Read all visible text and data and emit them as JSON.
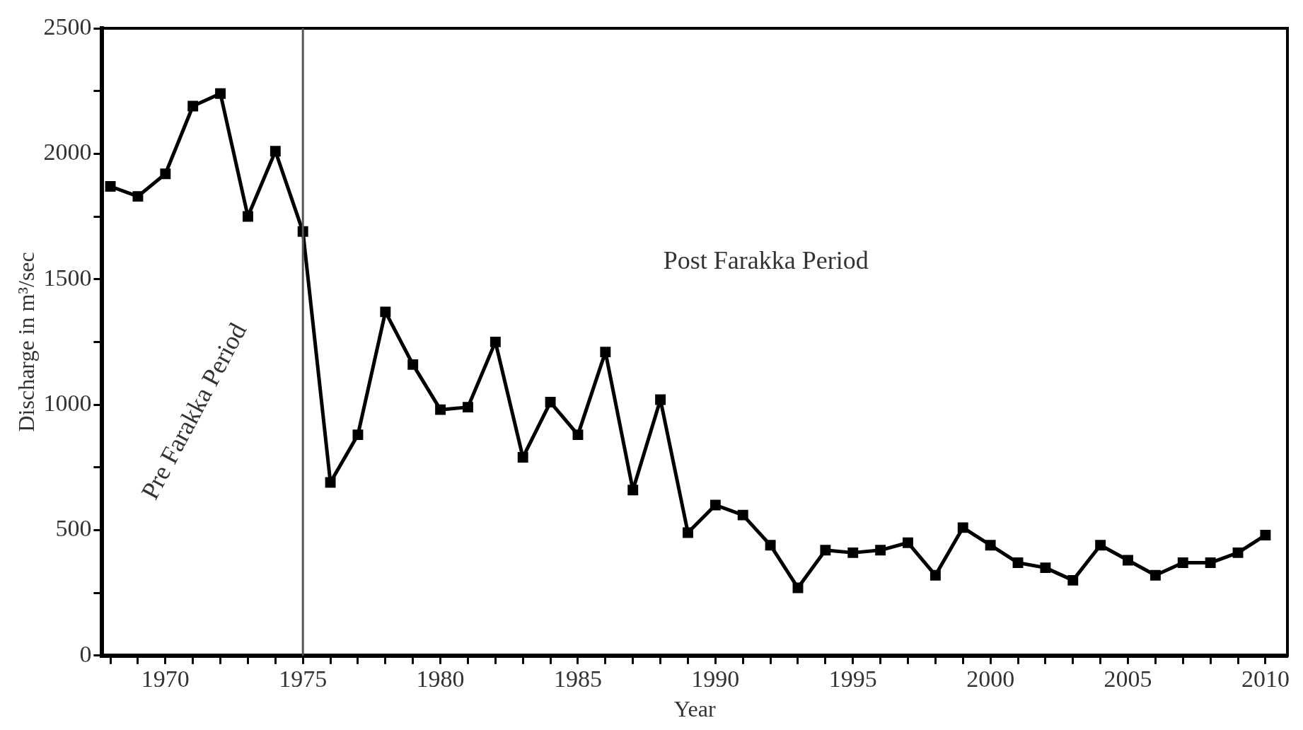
{
  "chart_data": {
    "type": "line",
    "xlabel": "Year",
    "ylabel": "Discharge in m³/sec",
    "x": [
      1968,
      1969,
      1970,
      1971,
      1972,
      1973,
      1974,
      1975,
      1976,
      1977,
      1978,
      1979,
      1980,
      1981,
      1982,
      1983,
      1984,
      1985,
      1986,
      1987,
      1988,
      1989,
      1990,
      1991,
      1992,
      1993,
      1994,
      1995,
      1996,
      1997,
      1998,
      1999,
      2000,
      2001,
      2002,
      2003,
      2004,
      2005,
      2006,
      2007,
      2008,
      2009,
      2010
    ],
    "series": [
      {
        "color": "#000000",
        "values": [
          1870,
          1830,
          1920,
          2190,
          2240,
          1750,
          2010,
          1690,
          690,
          880,
          1370,
          1160,
          980,
          990,
          1250,
          790,
          1010,
          880,
          1210,
          660,
          1020,
          490,
          600,
          560,
          440,
          270,
          420,
          410,
          420,
          450,
          320,
          510,
          440,
          370,
          350,
          300,
          440,
          380,
          320,
          370,
          370,
          410,
          480
        ]
      }
    ],
    "xlim": [
      1967.7,
      2010.8
    ],
    "xticks": [
      {
        "value": 1968,
        "label": null
      },
      {
        "value": 1969,
        "label": null
      },
      1970,
      {
        "value": 1971,
        "label": null
      },
      {
        "value": 1972,
        "label": null
      },
      {
        "value": 1973,
        "label": null
      },
      {
        "value": 1974,
        "label": null
      },
      1975,
      {
        "value": 1976,
        "label": null
      },
      {
        "value": 1977,
        "label": null
      },
      {
        "value": 1978,
        "label": null
      },
      {
        "value": 1979,
        "label": null
      },
      1980,
      {
        "value": 1981,
        "label": null
      },
      {
        "value": 1982,
        "label": null
      },
      {
        "value": 1983,
        "label": null
      },
      {
        "value": 1984,
        "label": null
      },
      1985,
      {
        "value": 1986,
        "label": null
      },
      {
        "value": 1987,
        "label": null
      },
      {
        "value": 1988,
        "label": null
      },
      {
        "value": 1989,
        "label": null
      },
      1990,
      {
        "value": 1991,
        "label": null
      },
      {
        "value": 1992,
        "label": null
      },
      {
        "value": 1993,
        "label": null
      },
      {
        "value": 1994,
        "label": null
      },
      1995,
      {
        "value": 1996,
        "label": null
      },
      {
        "value": 1997,
        "label": null
      },
      {
        "value": 1998,
        "label": null
      },
      {
        "value": 1999,
        "label": null
      },
      2000,
      {
        "value": 2001,
        "label": null
      },
      {
        "value": 2002,
        "label": null
      },
      {
        "value": 2003,
        "label": null
      },
      {
        "value": 2004,
        "label": null
      },
      2005,
      {
        "value": 2006,
        "label": null
      },
      {
        "value": 2007,
        "label": null
      },
      {
        "value": 2008,
        "label": null
      },
      {
        "value": 2009,
        "label": null
      },
      2010
    ],
    "ylim": [
      0,
      2500
    ],
    "yticks": [
      0,
      {
        "value": 250,
        "label": null
      },
      500,
      {
        "value": 750,
        "label": null
      },
      1000,
      {
        "value": 1250,
        "label": null
      },
      1500,
      {
        "value": 1750,
        "label": null
      },
      2000,
      {
        "value": 2250,
        "label": null
      },
      2500
    ],
    "ref_lines": [
      {
        "axis": "x",
        "value": 1975,
        "color": "#555555",
        "line_style": "solid"
      }
    ],
    "annotations": [
      "Pre Farakka Period",
      "Post Farakka Period"
    ],
    "marker": "square",
    "line_style": "solid",
    "grid": false,
    "legend": false
  }
}
